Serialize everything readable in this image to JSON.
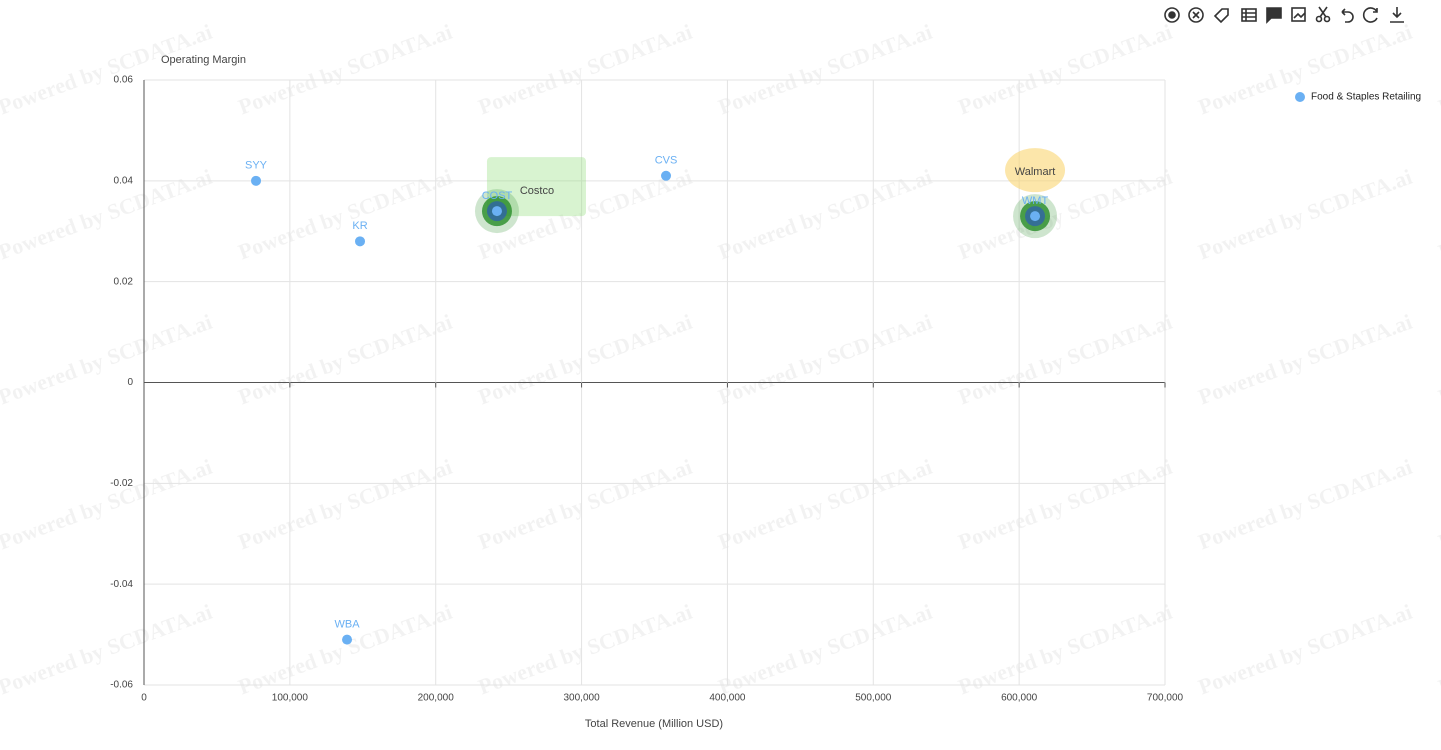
{
  "chart_data": {
    "type": "scatter",
    "y_label": "Operating Margin",
    "x_label": "Total Revenue (Million USD)",
    "watermark": "Powered by SCDATA.ai",
    "series": [
      {
        "name": "Food & Staples Retailing",
        "color": "#6ab0f3",
        "labels": [
          "SYY",
          "KR",
          "COST",
          "CVS",
          "WMT",
          "WBA"
        ],
        "x": [
          76800,
          148100,
          242000,
          357900,
          610900,
          139200
        ],
        "values": [
          0.04,
          0.028,
          0.034,
          0.041,
          0.033,
          -0.051
        ]
      }
    ],
    "annotations": [
      "Costco",
      "Walmart"
    ],
    "xlim": [
      0,
      700000
    ],
    "xticks": [
      0,
      {
        "value": 100000,
        "label": "100,000"
      },
      {
        "value": 200000,
        "label": "200,000"
      },
      {
        "value": 300000,
        "label": "300,000"
      },
      {
        "value": 400000,
        "label": "400,000"
      },
      {
        "value": 500000,
        "label": "500,000"
      },
      {
        "value": 600000,
        "label": "600,000"
      },
      {
        "value": 700000,
        "label": "700,000"
      }
    ],
    "ylim": [
      -0.06,
      0.06
    ],
    "yticks": [
      -0.06,
      -0.04,
      -0.02,
      0,
      0.02,
      0.04,
      0.06
    ],
    "grid": true,
    "legend": "top-right"
  }
}
